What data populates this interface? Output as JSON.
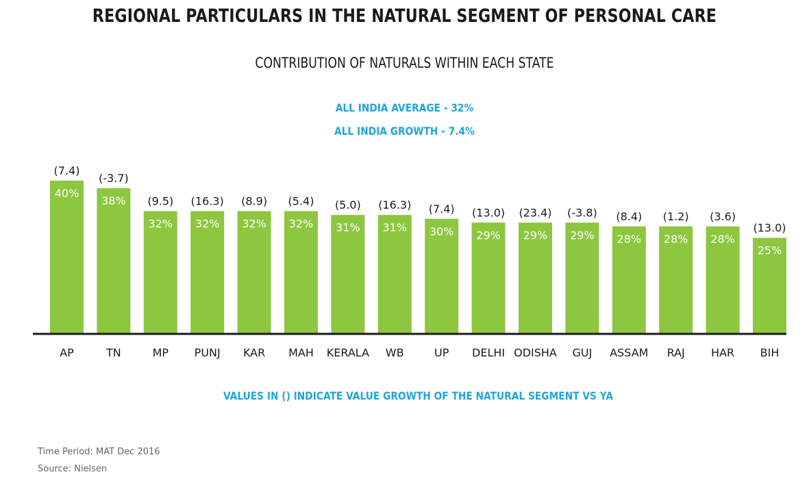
{
  "title": "REGIONAL PARTICULARS IN THE NATURAL SEGMENT OF PERSONAL CARE",
  "subtitle": "CONTRIBUTION OF NATURALS WITHIN EACH STATE",
  "stats": {
    "average": "ALL INDIA AVERAGE - 32%",
    "growth": "ALL INDIA GROWTH - 7.4%"
  },
  "note": "VALUES IN () INDICATE VALUE GROWTH OF THE NATURAL SEGMENT VS YA",
  "footer": {
    "period": "Time Period: MAT Dec 2016",
    "source": "Source: Nielsen"
  },
  "colors": {
    "bar": "#8dc63f",
    "accent": "#1fa6de",
    "axis": "#1a1a1a"
  },
  "chart_data": {
    "type": "bar",
    "categories": [
      "AP",
      "TN",
      "MP",
      "PUNJ",
      "KAR",
      "MAH",
      "KERALA",
      "WB",
      "UP",
      "DELHI",
      "ODISHA",
      "GUJ",
      "ASSAM",
      "RAJ",
      "HAR",
      "BIH"
    ],
    "values": [
      40,
      38,
      32,
      32,
      32,
      32,
      31,
      31,
      30,
      29,
      29,
      29,
      28,
      28,
      28,
      25
    ],
    "value_labels": [
      "40%",
      "38%",
      "32%",
      "32%",
      "32%",
      "32%",
      "31%",
      "31%",
      "30%",
      "29%",
      "29%",
      "29%",
      "28%",
      "28%",
      "28%",
      "25%"
    ],
    "growth": [
      7.4,
      -3.7,
      9.5,
      16.3,
      8.9,
      5.4,
      5.0,
      16.3,
      7.4,
      13.0,
      23.4,
      -3.8,
      8.4,
      1.2,
      3.6,
      13.0
    ],
    "growth_labels": [
      "(7.4)",
      "(-3.7)",
      "(9.5)",
      "(16.3)",
      "(8.9)",
      "(5.4)",
      "(5.0)",
      "(16.3)",
      "(7.4)",
      "(13.0)",
      "(23.4)",
      "(-3.8)",
      "(8.4)",
      "(1.2)",
      "(3.6)",
      "(13.0)"
    ],
    "ylim": [
      0,
      40
    ],
    "grid": false,
    "xlabel": "",
    "ylabel": ""
  }
}
